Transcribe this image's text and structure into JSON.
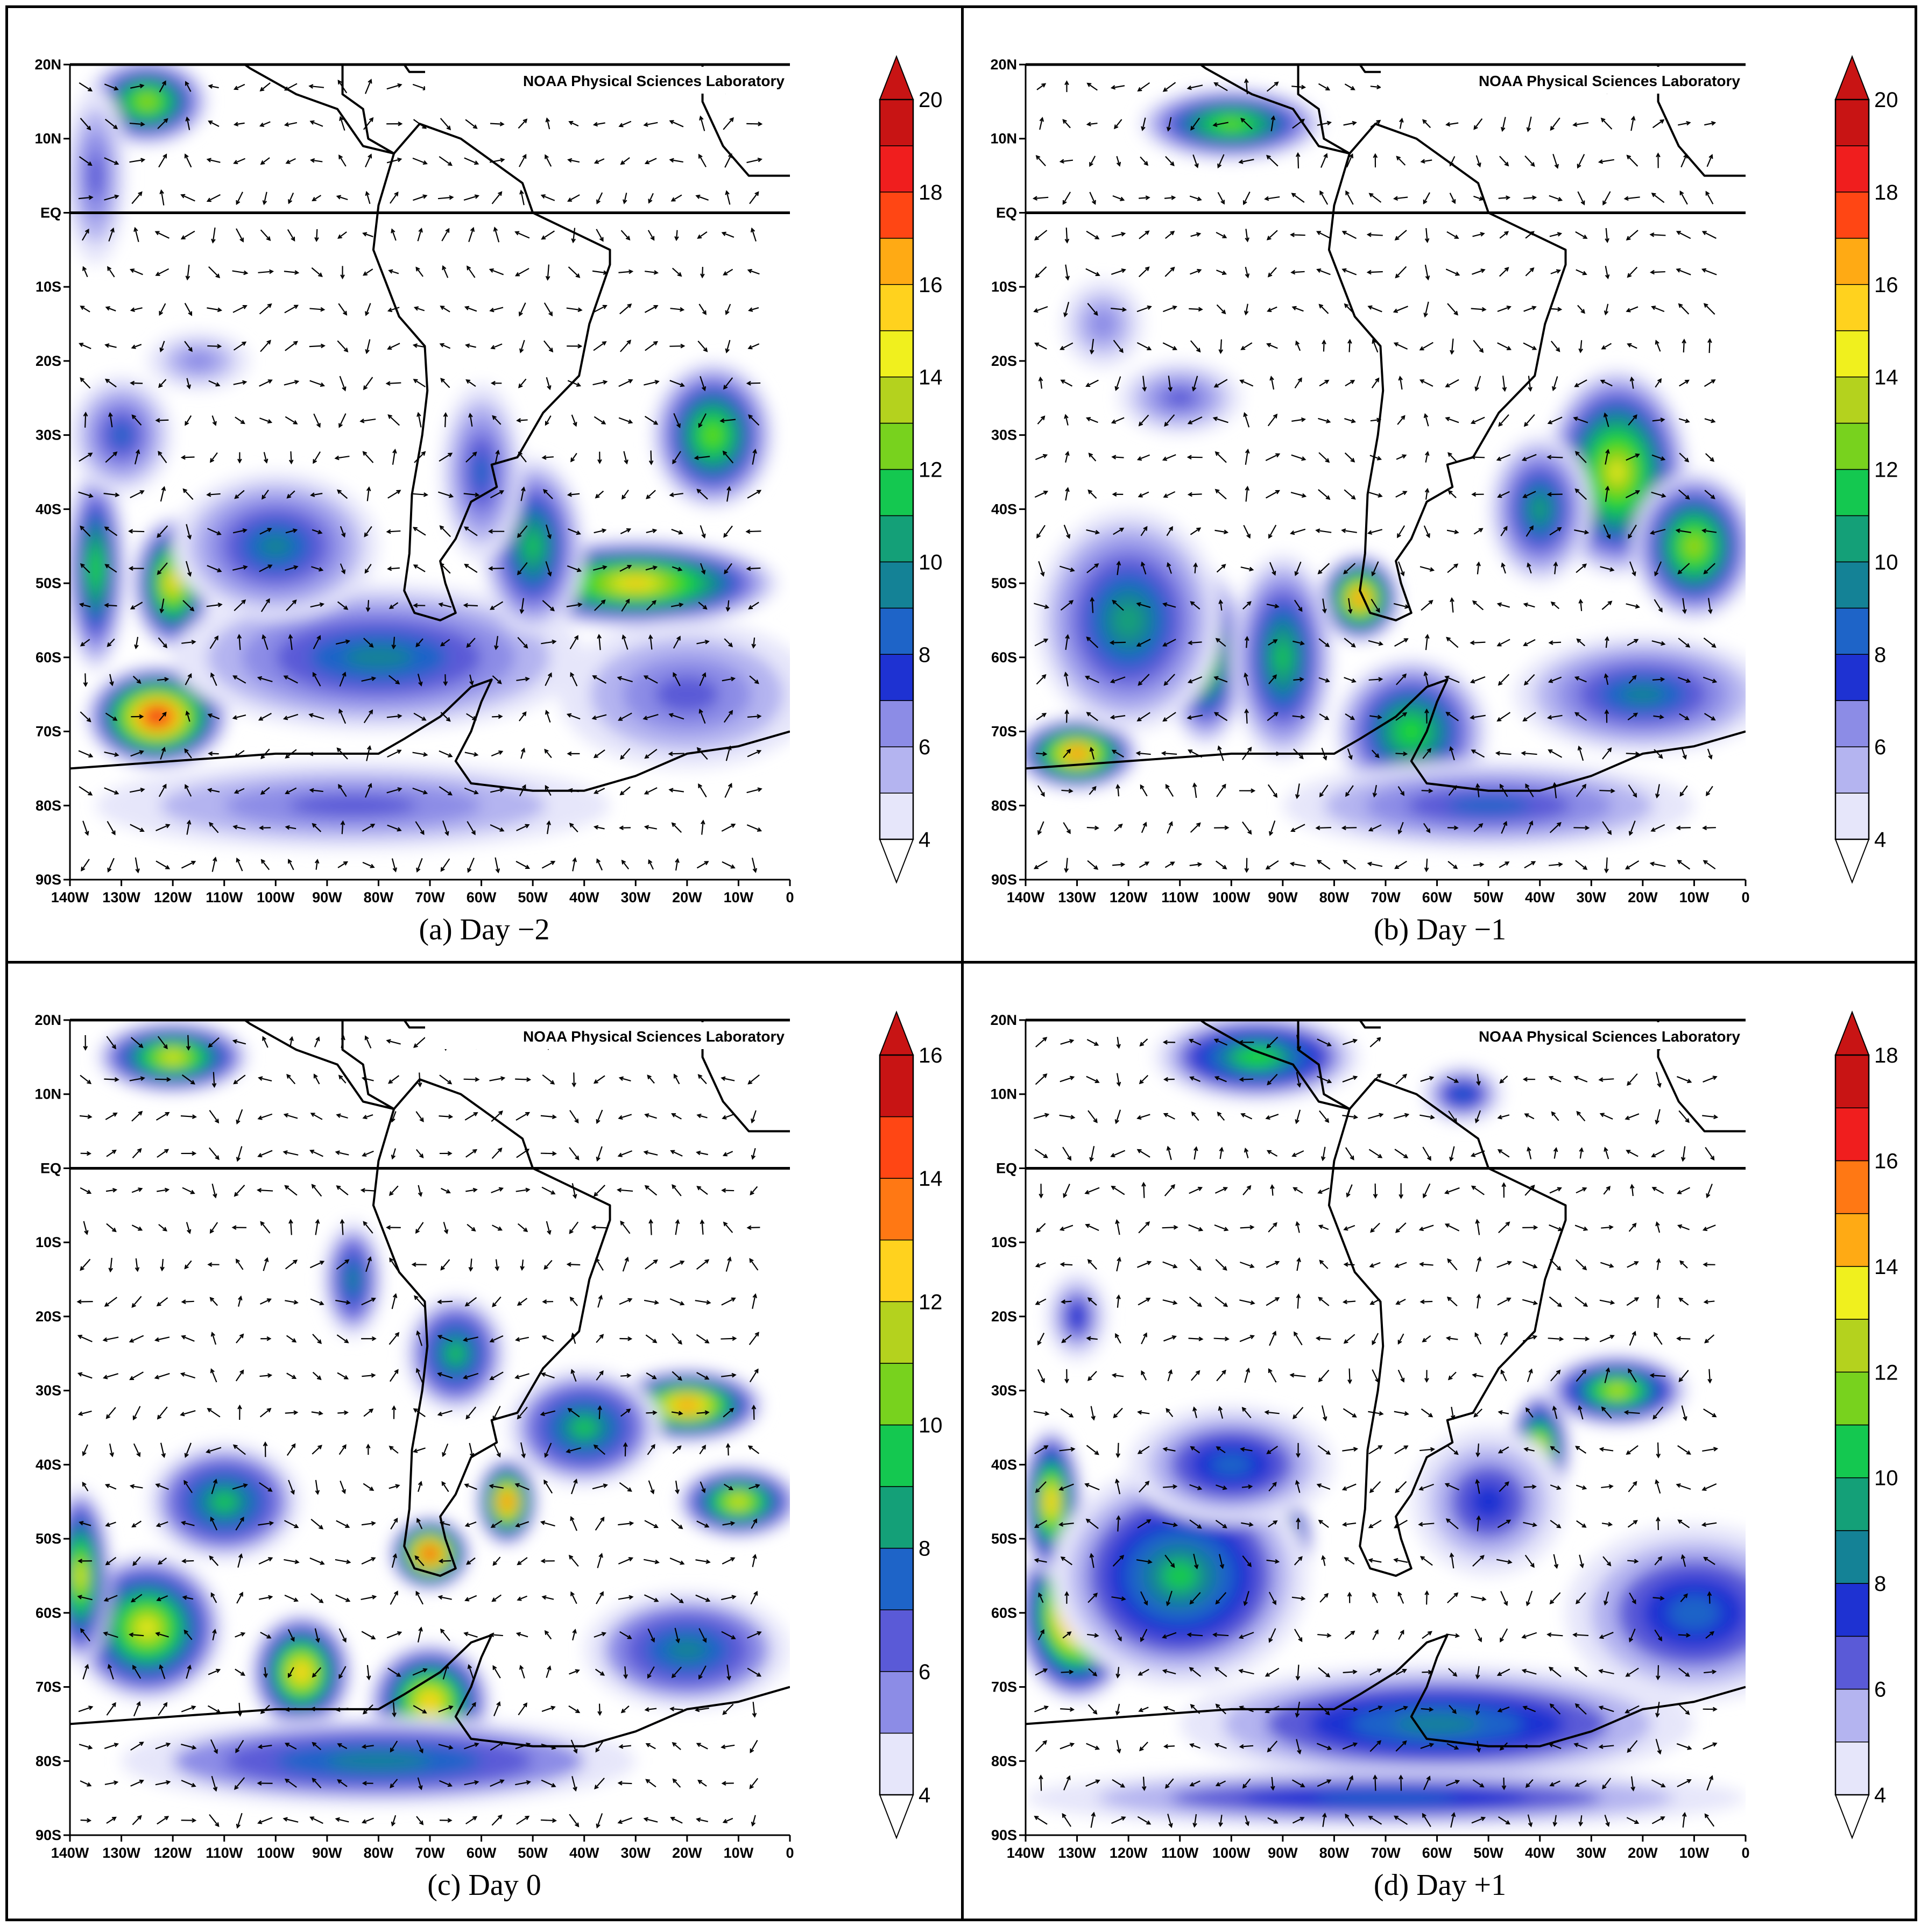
{
  "figure": {
    "credit": "NOAA Physical Sciences Laboratory",
    "panels": [
      {
        "id": "a",
        "caption": "(a) Day −2",
        "colorbar": {
          "min": 4,
          "max": 20,
          "step": 1,
          "labels": [
            "4",
            "6",
            "8",
            "10",
            "12",
            "14",
            "16",
            "18",
            "20"
          ]
        }
      },
      {
        "id": "b",
        "caption": "(b) Day −1",
        "colorbar": {
          "min": 4,
          "max": 20,
          "step": 1,
          "labels": [
            "4",
            "6",
            "8",
            "10",
            "12",
            "14",
            "16",
            "18",
            "20"
          ]
        }
      },
      {
        "id": "c",
        "caption": "(c) Day 0",
        "colorbar": {
          "min": 4,
          "max": 16,
          "step": 1,
          "labels": [
            "4",
            "6",
            "8",
            "10",
            "12",
            "14",
            "16"
          ]
        }
      },
      {
        "id": "d",
        "caption": "(d) Day +1",
        "colorbar": {
          "min": 4,
          "max": 18,
          "step": 1,
          "labels": [
            "4",
            "6",
            "8",
            "10",
            "12",
            "14",
            "16",
            "18"
          ]
        }
      }
    ],
    "lat_labels": [
      "20N",
      "10N",
      "EQ",
      "10S",
      "20S",
      "30S",
      "40S",
      "50S",
      "60S",
      "70S",
      "80S",
      "90S"
    ],
    "lat_values": [
      20,
      10,
      0,
      -10,
      -20,
      -30,
      -40,
      -50,
      -60,
      -70,
      -80,
      -90
    ],
    "lon_labels": [
      "140W",
      "130W",
      "120W",
      "110W",
      "100W",
      "90W",
      "80W",
      "70W",
      "60W",
      "50W",
      "40W",
      "30W",
      "20W",
      "10W",
      "0"
    ],
    "lon_values": [
      -140,
      -130,
      -120,
      -110,
      -100,
      -90,
      -80,
      -70,
      -60,
      -50,
      -40,
      -30,
      -20,
      -10,
      0
    ],
    "extent": {
      "lon": [
        -140,
        0
      ],
      "lat": [
        -90,
        20
      ]
    },
    "palette": [
      "#e6e6fa",
      "#b4b4f0",
      "#8c8ce6",
      "#5a5ad7",
      "#1e32d2",
      "#1e64c8",
      "#148296",
      "#14a078",
      "#14c850",
      "#1edc1e",
      "#78d21e",
      "#b4d21e",
      "#f0f01e",
      "#ffd21e",
      "#ffaa14",
      "#ff7814",
      "#ff4614",
      "#f01e1e",
      "#c81414"
    ],
    "colors": {
      "land_line": "#000000",
      "arrow": "#000000",
      "background": "#ffffff"
    }
  }
}
